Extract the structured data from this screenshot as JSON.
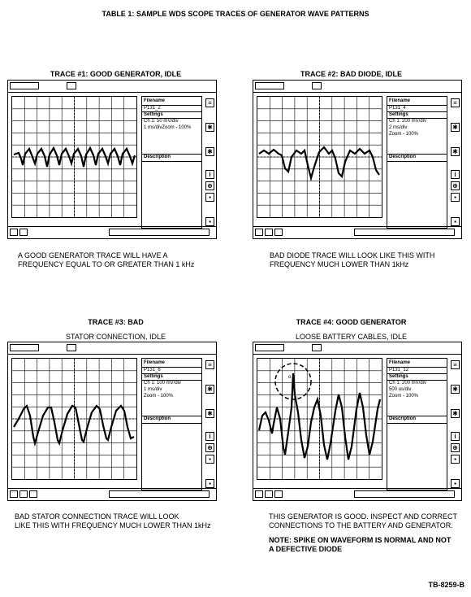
{
  "page_title": "TABLE 1: SAMPLE WDS SCOPE TRACES OF GENERATOR WAVE PATTERNS",
  "figure_id": "TB-8259-B",
  "traces": [
    {
      "title": "TRACE #1: GOOD GENERATOR, IDLE",
      "subtitle": "",
      "info": {
        "filename_label": "Filename",
        "filename": "P131_2",
        "settings_label": "Settings",
        "settings_1": "Ch 1: 50 mV/div",
        "settings_2": "1 ms/divZoom - 100%",
        "settings_3": "",
        "description_label": "Description"
      },
      "caption_1": "A GOOD GENERATOR TRACE WILL HAVE A",
      "caption_2": "FREQUENCY EQUAL TO OR GREATER THAN 1 kHz",
      "note_1": "",
      "note_2": ""
    },
    {
      "title": "TRACE #2: BAD DIODE, IDLE",
      "subtitle": "",
      "info": {
        "filename_label": "Filename",
        "filename": "P131_4",
        "settings_label": "Settings",
        "settings_1": "Ch 1: 200 mV/div",
        "settings_2": "2 ms/div",
        "settings_3": "Zoom - 100%",
        "description_label": "Description"
      },
      "caption_1": "BAD DIODE TRACE WILL LOOK LIKE THIS WITH",
      "caption_2": "FREQUENCY MUCH LOWER THAN 1kHz",
      "note_1": "",
      "note_2": ""
    },
    {
      "title": "TRACE #3: BAD",
      "subtitle": "STATOR CONNECTION, IDLE",
      "info": {
        "filename_label": "Filename",
        "filename": "P131_6",
        "settings_label": "Settings",
        "settings_1": "Ch 1: 100 mV/div",
        "settings_2": "1 ms/div",
        "settings_3": "Zoom - 100%",
        "description_label": "Description"
      },
      "caption_1": "BAD STATOR CONNECTION TRACE WILL LOOK",
      "caption_2": "LIKE THIS WITH FREQUENCY MUCH LOWER THAN 1kHz",
      "note_1": "",
      "note_2": ""
    },
    {
      "title": "TRACE #4: GOOD GENERATOR",
      "subtitle": "LOOSE BATTERY CABLES, IDLE",
      "info": {
        "filename_label": "Filename",
        "filename": "P131_12",
        "settings_label": "Settings",
        "settings_1": "Ch 1: 200 mV/div",
        "settings_2": "500 us/div",
        "settings_3": "Zoom - 100%",
        "description_label": "Description"
      },
      "caption_1": "THIS GENERATOR IS GOOD. INSPECT AND CORRECT",
      "caption_2": "CONNECTIONS TO THE BATTERY AND GENERATOR.",
      "note_1": "NOTE: SPIKE ON WAVEFORM IS NORMAL AND NOT",
      "note_2": "A DEFECTIVE DIODE"
    }
  ]
}
